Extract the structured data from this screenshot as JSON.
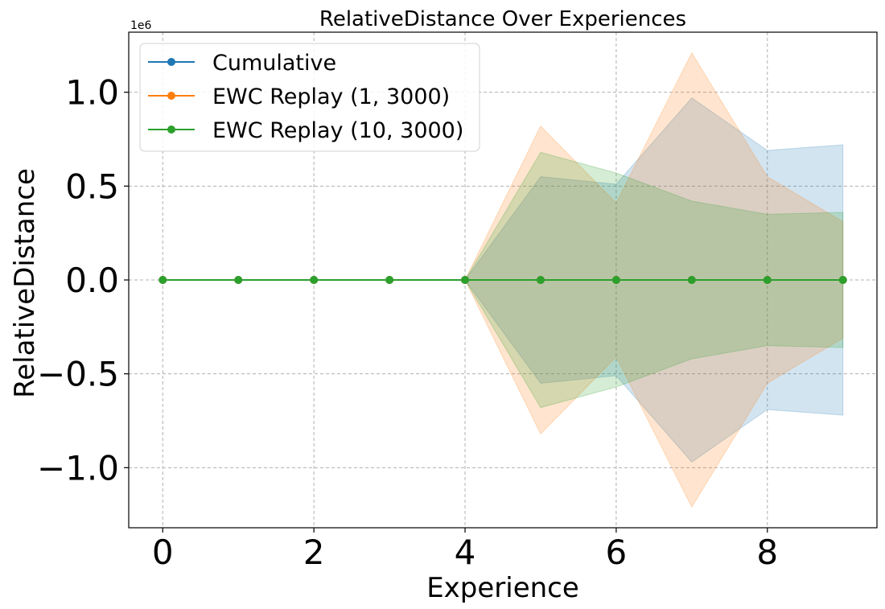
{
  "chart_data": {
    "type": "line",
    "title": "RelativeDistance Over Experiences",
    "xlabel": "Experience",
    "ylabel": "RelativeDistance",
    "y_scale_label": "1e6",
    "y_multiplier": 1000000,
    "xlim": [
      -0.45,
      9.45
    ],
    "ylim": [
      -1.32,
      1.32
    ],
    "x_ticks": [
      0,
      2,
      4,
      6,
      8
    ],
    "x_tick_labels": [
      "0",
      "2",
      "4",
      "6",
      "8"
    ],
    "y_ticks": [
      -1.0,
      -0.5,
      0.0,
      0.5,
      1.0
    ],
    "y_tick_labels": [
      "−1.0",
      "−0.5",
      "0.0",
      "0.5",
      "1.0"
    ],
    "grid": true,
    "legend_position": "top-left",
    "x": [
      0,
      1,
      2,
      3,
      4,
      5,
      6,
      7,
      8,
      9
    ],
    "series": [
      {
        "name": "Cumulative",
        "color": "#1f77b4",
        "values": [
          0,
          0,
          0,
          0,
          0,
          0,
          0,
          0,
          0,
          0
        ],
        "band": [
          0,
          0,
          0,
          0,
          0,
          0.55,
          0.51,
          0.97,
          0.69,
          0.72
        ]
      },
      {
        "name": "EWC Replay (1, 3000)",
        "color": "#ff7f0e",
        "values": [
          0,
          0,
          0,
          0,
          0,
          0,
          0,
          0,
          0,
          0
        ],
        "band": [
          0,
          0,
          0,
          0,
          0,
          0.82,
          0.41,
          1.21,
          0.55,
          0.31
        ]
      },
      {
        "name": "EWC Replay (10, 3000)",
        "color": "#2ca02c",
        "values": [
          0,
          0,
          0,
          0,
          0,
          0,
          0,
          0,
          0,
          0
        ],
        "band": [
          0,
          0,
          0,
          0,
          0,
          0.68,
          0.57,
          0.42,
          0.35,
          0.36
        ]
      }
    ]
  }
}
